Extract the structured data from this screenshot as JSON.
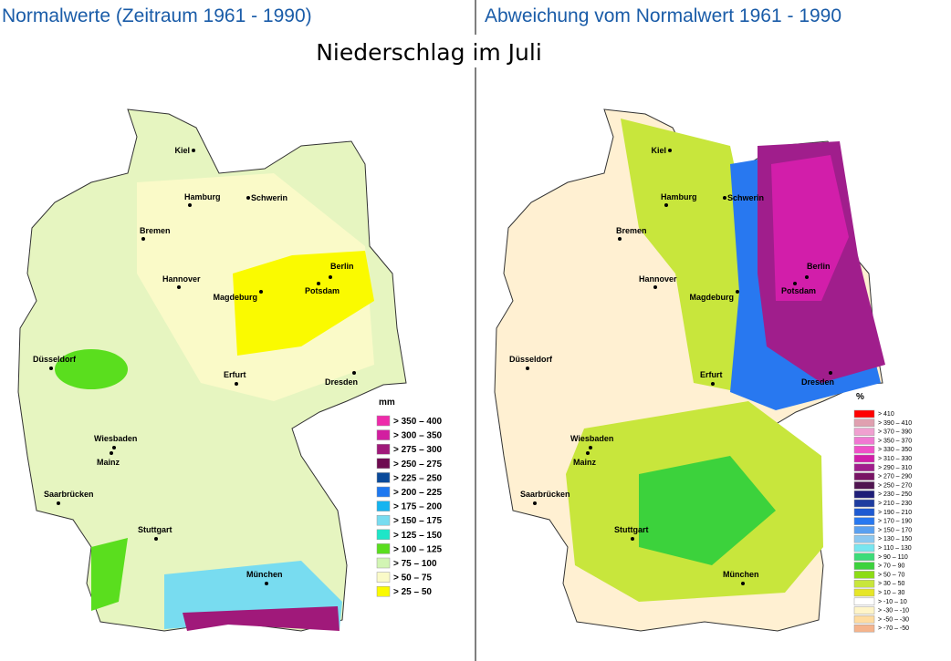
{
  "main_title": "Niederschlag im Juli",
  "left": {
    "title": "Normalwerte (Zeitraum 1961 - 1990)",
    "legend": {
      "unit": "mm",
      "entries": [
        {
          "label": "> 350 – 400",
          "color": "#ee2aaa"
        },
        {
          "label": "> 300 – 350",
          "color": "#d21ea0"
        },
        {
          "label": "> 275 – 300",
          "color": "#a0197a"
        },
        {
          "label": "> 250 – 275",
          "color": "#6e0a50"
        },
        {
          "label": "> 225 – 250",
          "color": "#0a4a9a"
        },
        {
          "label": "> 200 – 225",
          "color": "#1e78f0"
        },
        {
          "label": "> 175 – 200",
          "color": "#14b4f0"
        },
        {
          "label": "> 150 – 175",
          "color": "#78dcf0"
        },
        {
          "label": "> 125 – 150",
          "color": "#1ee6c8"
        },
        {
          "label": "> 100 – 125",
          "color": "#5ade1e"
        },
        {
          "label": ">   75 – 100",
          "color": "#d2f5b4"
        },
        {
          "label": ">   50 –   75",
          "color": "#fafac8"
        },
        {
          "label": ">   25 –   50",
          "color": "#fafa00"
        }
      ]
    }
  },
  "right": {
    "title": "Abweichung vom Normalwert 1961 - 1990",
    "legend": {
      "unit": "%",
      "entries": [
        {
          "label": "> 410",
          "color": "#ff0000"
        },
        {
          "label": "> 390 – 410",
          "color": "#e0a0b0"
        },
        {
          "label": "> 370 – 390",
          "color": "#f0a0d0"
        },
        {
          "label": "> 350 – 370",
          "color": "#f078d2"
        },
        {
          "label": "> 330 – 350",
          "color": "#f050c8"
        },
        {
          "label": "> 310 – 330",
          "color": "#d21eaa"
        },
        {
          "label": "> 290 – 310",
          "color": "#a01e8c"
        },
        {
          "label": "> 270 – 290",
          "color": "#781464"
        },
        {
          "label": "> 250 – 270",
          "color": "#501450"
        },
        {
          "label": "> 230 – 250",
          "color": "#1e1e78"
        },
        {
          "label": "> 210 – 230",
          "color": "#1e3ca0"
        },
        {
          "label": "> 190 – 210",
          "color": "#1e5ad2"
        },
        {
          "label": "> 170 – 190",
          "color": "#2878f0"
        },
        {
          "label": "> 150 – 170",
          "color": "#5aa0f0"
        },
        {
          "label": "> 130 – 150",
          "color": "#8cc8f0"
        },
        {
          "label": "> 110 – 130",
          "color": "#78e6f0"
        },
        {
          "label": ">   90 – 110",
          "color": "#3cdc78"
        },
        {
          "label": ">   70 –   90",
          "color": "#3cd23c"
        },
        {
          "label": ">   50 –   70",
          "color": "#8cdc14"
        },
        {
          "label": ">   30 –   50",
          "color": "#c8e63c"
        },
        {
          "label": ">   10 –   30",
          "color": "#e6e628"
        },
        {
          "label": ">  -10 –   10",
          "color": "#ffffff"
        },
        {
          "label": ">  -30 – -10",
          "color": "#fff5c8"
        },
        {
          "label": ">  -50 – -30",
          "color": "#ffdca0"
        },
        {
          "label": ">  -70 – -50",
          "color": "#f5b48c"
        }
      ]
    }
  },
  "cities": [
    "Kiel",
    "Hamburg",
    "Schwerin",
    "Bremen",
    "Berlin",
    "Hannover",
    "Potsdam",
    "Magdeburg",
    "Düsseldorf",
    "Erfurt",
    "Dresden",
    "Wiesbaden",
    "Mainz",
    "Saarbrücken",
    "Stuttgart",
    "München"
  ]
}
